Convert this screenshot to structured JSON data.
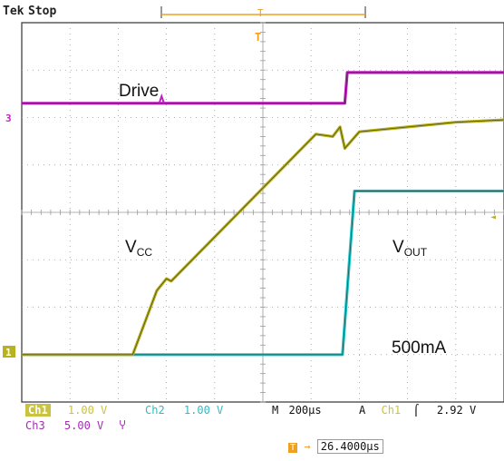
{
  "header": {
    "brand": "Tek",
    "run_state": "Stop"
  },
  "colors": {
    "ch1": "#b8b220",
    "ch1_text": "#c9c340",
    "ch2": "#1ec8c8",
    "ch2_text": "#35b8c0",
    "ch3": "#c020c0",
    "ch3_text": "#a030b0",
    "trigger": "#f0a020",
    "grid": "#9a9a9a",
    "trace_dark": "#111111"
  },
  "annotations": {
    "drive": "Drive",
    "vcc_main": "V",
    "vcc_sub": "CC",
    "vout_main": "V",
    "vout_sub": "OUT",
    "load": "500mA"
  },
  "markers": {
    "ch1": "1",
    "ch3": "3",
    "trigger_top": "T",
    "trigger_level": "◄"
  },
  "status": {
    "ch1_name": "Ch1",
    "ch1_scale": "1.00 V",
    "ch2_name": "Ch2",
    "ch2_scale": "1.00 V",
    "timebase_mode": "M",
    "timebase": "200µs",
    "trigger_mode": "A",
    "trigger_source": "Ch1",
    "trigger_slope": "⌠",
    "trigger_level": "2.92 V",
    "ch3_name": "Ch3",
    "ch3_scale": "5.00 V",
    "ch3_bw": "Ⴤ",
    "trigger_pos_marker": "T",
    "trigger_pos_arrow": "→",
    "trigger_position": "26.4000µs"
  },
  "chart_data": {
    "type": "line",
    "title": "",
    "x_unit": "div",
    "xlim": [
      0,
      10
    ],
    "ylim": [
      0,
      8
    ],
    "grid": true,
    "series": [
      {
        "key": "ch3",
        "name": "Drive",
        "x": [
          0,
          6.7,
          6.75,
          10
        ],
        "y": [
          6.3,
          6.3,
          6.95,
          6.95
        ]
      },
      {
        "key": "ch1",
        "name": "VCC",
        "x": [
          0,
          2.3,
          2.8,
          3.0,
          3.1,
          6.1,
          6.45,
          6.6,
          6.7,
          7.0,
          8.0,
          9.0,
          10
        ],
        "y": [
          1.0,
          1.0,
          2.35,
          2.6,
          2.55,
          5.65,
          5.6,
          5.8,
          5.35,
          5.7,
          5.8,
          5.9,
          5.95
        ]
      },
      {
        "key": "ch2",
        "name": "VOUT",
        "x": [
          0,
          6.65,
          6.9,
          10
        ],
        "y": [
          1.0,
          1.0,
          4.45,
          4.45
        ]
      }
    ]
  }
}
